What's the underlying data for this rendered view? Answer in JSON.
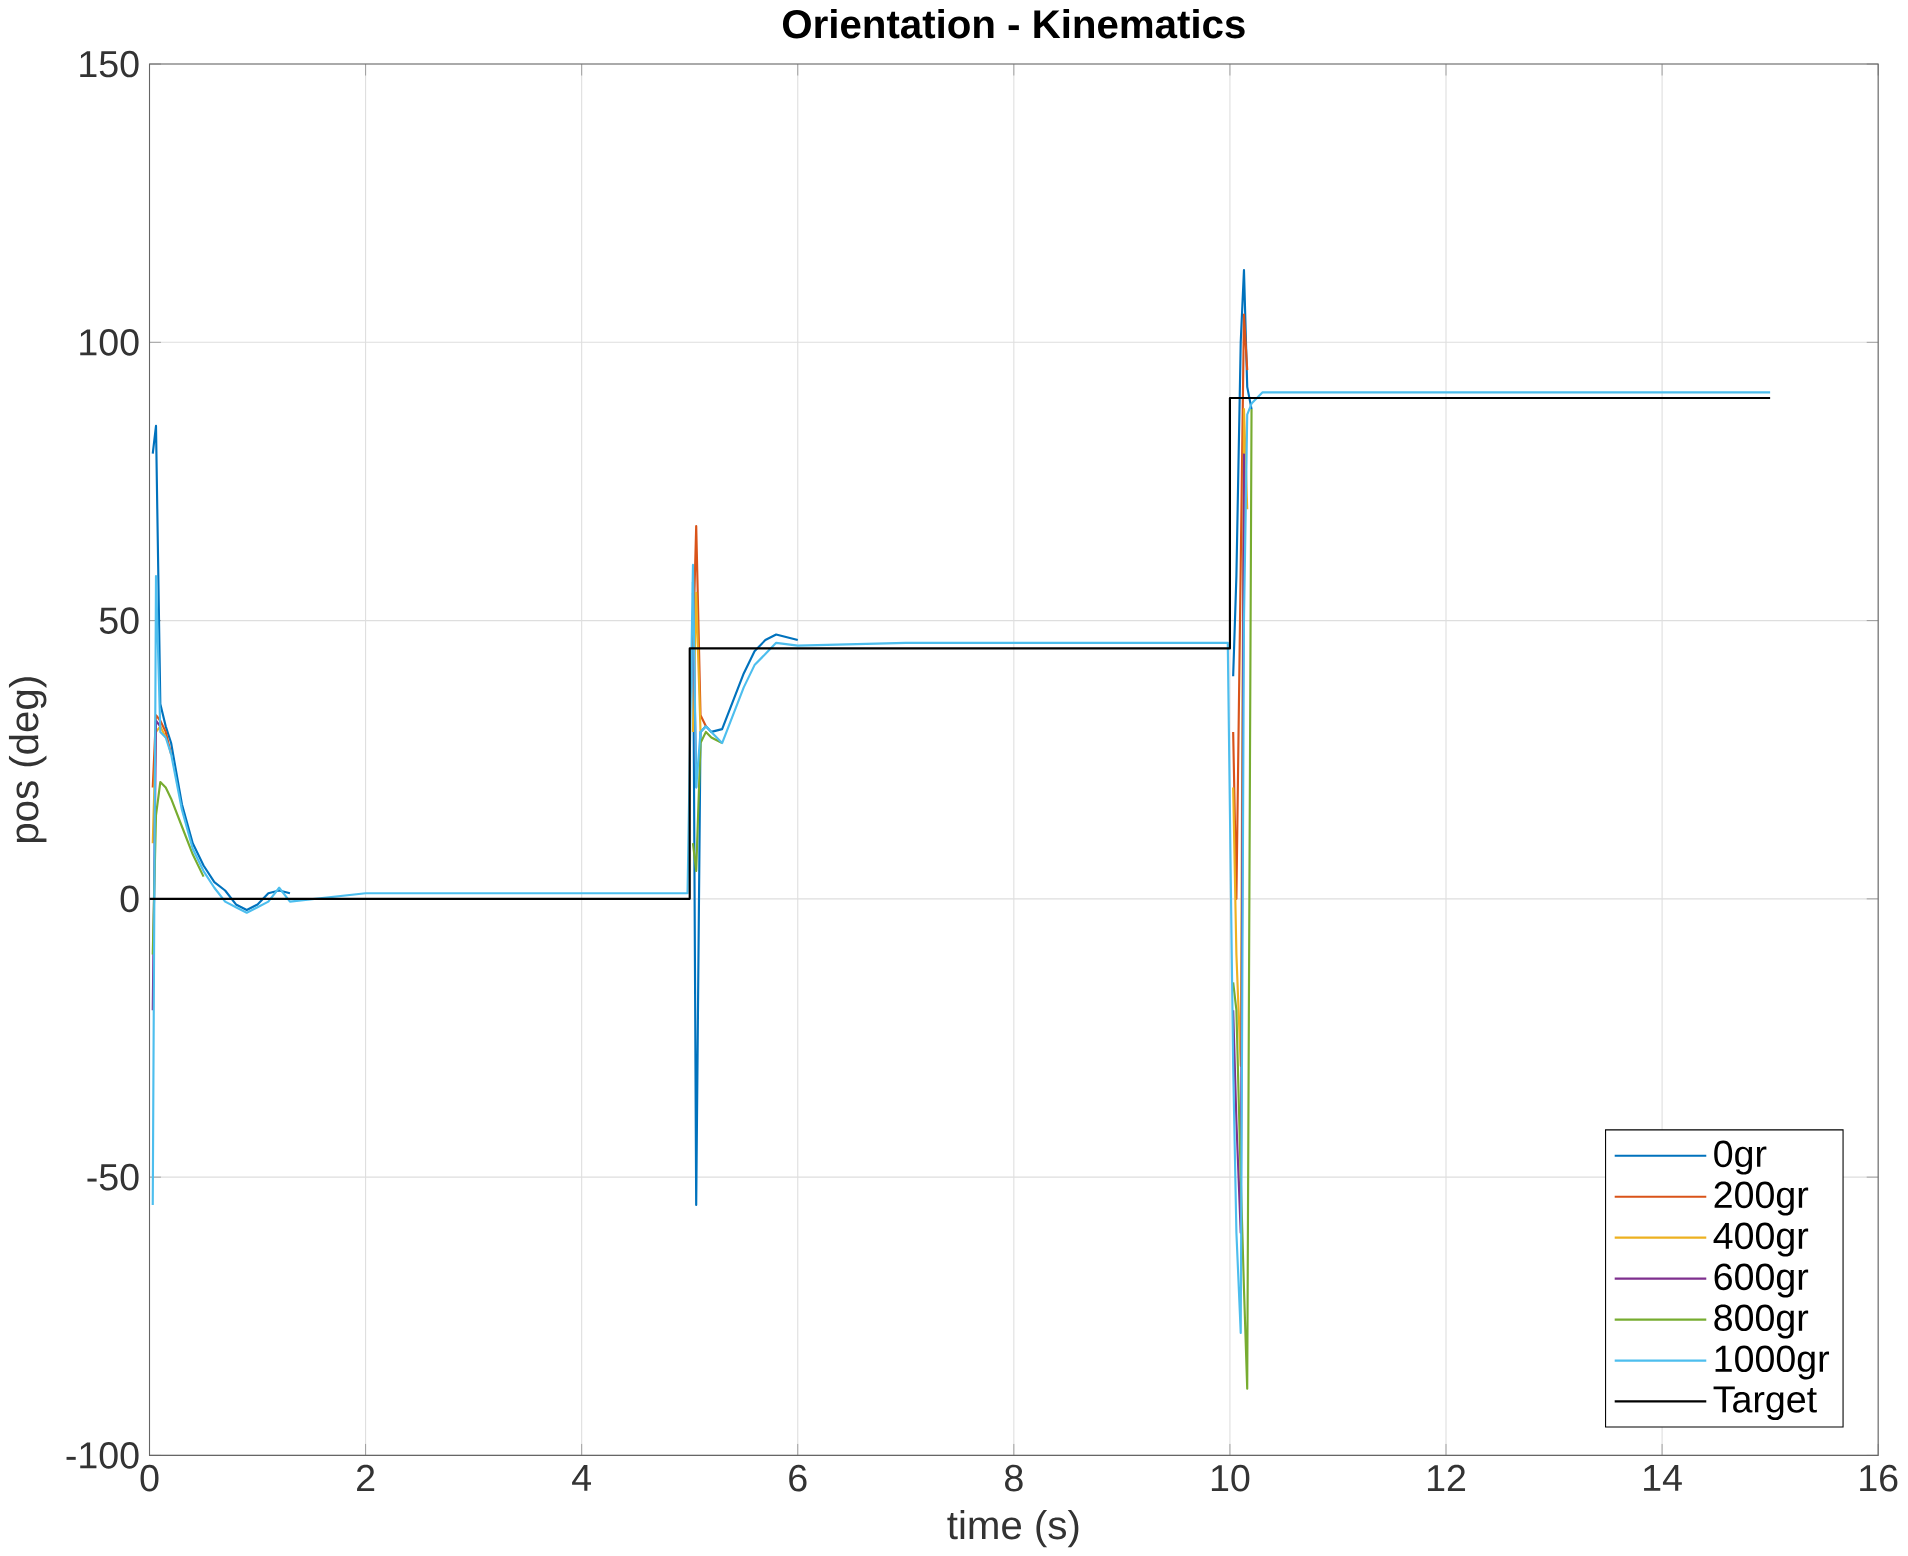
{
  "chart_data": {
    "type": "line",
    "title": "Orientation - Kinematics",
    "xlabel": "time (s)",
    "ylabel": "pos (deg)",
    "x": [
      0.03,
      0.06,
      0.1,
      0.15,
      0.2,
      0.3,
      0.4,
      0.5,
      0.6,
      0.7,
      0.8,
      0.9,
      1.0,
      1.1,
      1.2,
      1.3,
      2,
      3,
      4,
      4.98,
      5.03,
      5.06,
      5.1,
      5.15,
      5.2,
      5.3,
      5.4,
      5.5,
      5.6,
      5.7,
      5.8,
      6.0,
      7,
      8,
      9,
      9.98,
      10.03,
      10.06,
      10.1,
      10.13,
      10.16,
      10.2,
      10.3,
      11,
      12,
      13,
      14,
      15
    ],
    "series": [
      {
        "name": "0gr",
        "color": "#0072bd",
        "values": [
          80,
          85,
          35,
          31,
          28,
          17,
          10,
          6,
          3,
          1.5,
          -1,
          -2,
          -1,
          1,
          1.5,
          1,
          null,
          null,
          null,
          null,
          57,
          -55,
          30,
          31,
          30,
          30.5,
          35.5,
          40.5,
          44.5,
          46.5,
          47.5,
          46.5,
          null,
          null,
          null,
          null,
          40,
          58,
          100,
          113,
          92,
          88,
          null,
          null,
          null,
          null,
          null,
          null
        ]
      },
      {
        "name": "200gr",
        "color": "#d95319",
        "values": [
          20,
          33,
          32,
          30,
          26,
          null,
          null,
          null,
          null,
          null,
          null,
          null,
          null,
          null,
          null,
          null,
          null,
          null,
          null,
          null,
          45,
          67,
          33,
          31,
          null,
          null,
          null,
          null,
          null,
          null,
          null,
          null,
          null,
          null,
          null,
          null,
          30,
          0,
          60,
          105,
          95,
          null,
          null,
          null,
          null,
          null,
          null,
          null
        ]
      },
      {
        "name": "400gr",
        "color": "#edb120",
        "values": [
          10,
          30,
          31,
          29,
          null,
          null,
          null,
          null,
          null,
          null,
          null,
          null,
          null,
          null,
          null,
          null,
          null,
          null,
          null,
          null,
          30,
          55,
          30,
          null,
          null,
          null,
          null,
          null,
          null,
          null,
          null,
          null,
          null,
          null,
          null,
          null,
          20,
          -10,
          -30,
          88,
          70,
          null,
          null,
          null,
          null,
          null,
          null,
          null
        ]
      },
      {
        "name": "600gr",
        "color": "#7e2f8e",
        "values": [
          -20,
          32,
          31,
          null,
          null,
          null,
          null,
          null,
          null,
          null,
          null,
          null,
          null,
          null,
          null,
          null,
          null,
          null,
          null,
          null,
          55,
          20,
          null,
          null,
          null,
          null,
          null,
          null,
          null,
          null,
          null,
          null,
          null,
          null,
          null,
          null,
          -20,
          -40,
          -60,
          80,
          null,
          null,
          null,
          null,
          null,
          null,
          null,
          null
        ]
      },
      {
        "name": "800gr",
        "color": "#77ac30",
        "values": [
          -10,
          15,
          21,
          20,
          18,
          13,
          8,
          4,
          null,
          null,
          null,
          null,
          null,
          null,
          null,
          null,
          null,
          null,
          null,
          null,
          10,
          5,
          28,
          30,
          29,
          28,
          null,
          null,
          null,
          null,
          null,
          null,
          null,
          null,
          null,
          null,
          -15,
          -20,
          -50,
          -70,
          -88,
          88,
          null,
          null,
          null,
          null,
          null,
          null
        ]
      },
      {
        "name": "1000gr",
        "color": "#4dbeee",
        "values": [
          -55,
          58,
          30,
          29,
          26,
          16,
          9,
          5,
          2,
          -0.5,
          -1.5,
          -2.5,
          -1.5,
          -0.5,
          2,
          -0.5,
          1,
          1,
          1,
          1,
          60,
          20,
          30,
          31,
          30,
          28,
          33,
          38,
          42,
          44,
          46,
          45.5,
          46,
          46,
          46,
          46,
          -30,
          -60,
          -78,
          50,
          87,
          89,
          91,
          91,
          91,
          91,
          91,
          91
        ]
      },
      {
        "name": "Target",
        "color": "#000000",
        "x": [
          0,
          5,
          5,
          10,
          10,
          15
        ],
        "values": [
          0,
          0,
          45,
          45,
          90,
          90
        ]
      }
    ],
    "xlim": [
      0,
      16
    ],
    "ylim": [
      -100,
      150
    ],
    "xticks": [
      0,
      2,
      4,
      6,
      8,
      10,
      12,
      14,
      16
    ],
    "yticks": [
      -100,
      -50,
      0,
      50,
      100,
      150
    ],
    "grid": true,
    "legend": "bottom right"
  }
}
